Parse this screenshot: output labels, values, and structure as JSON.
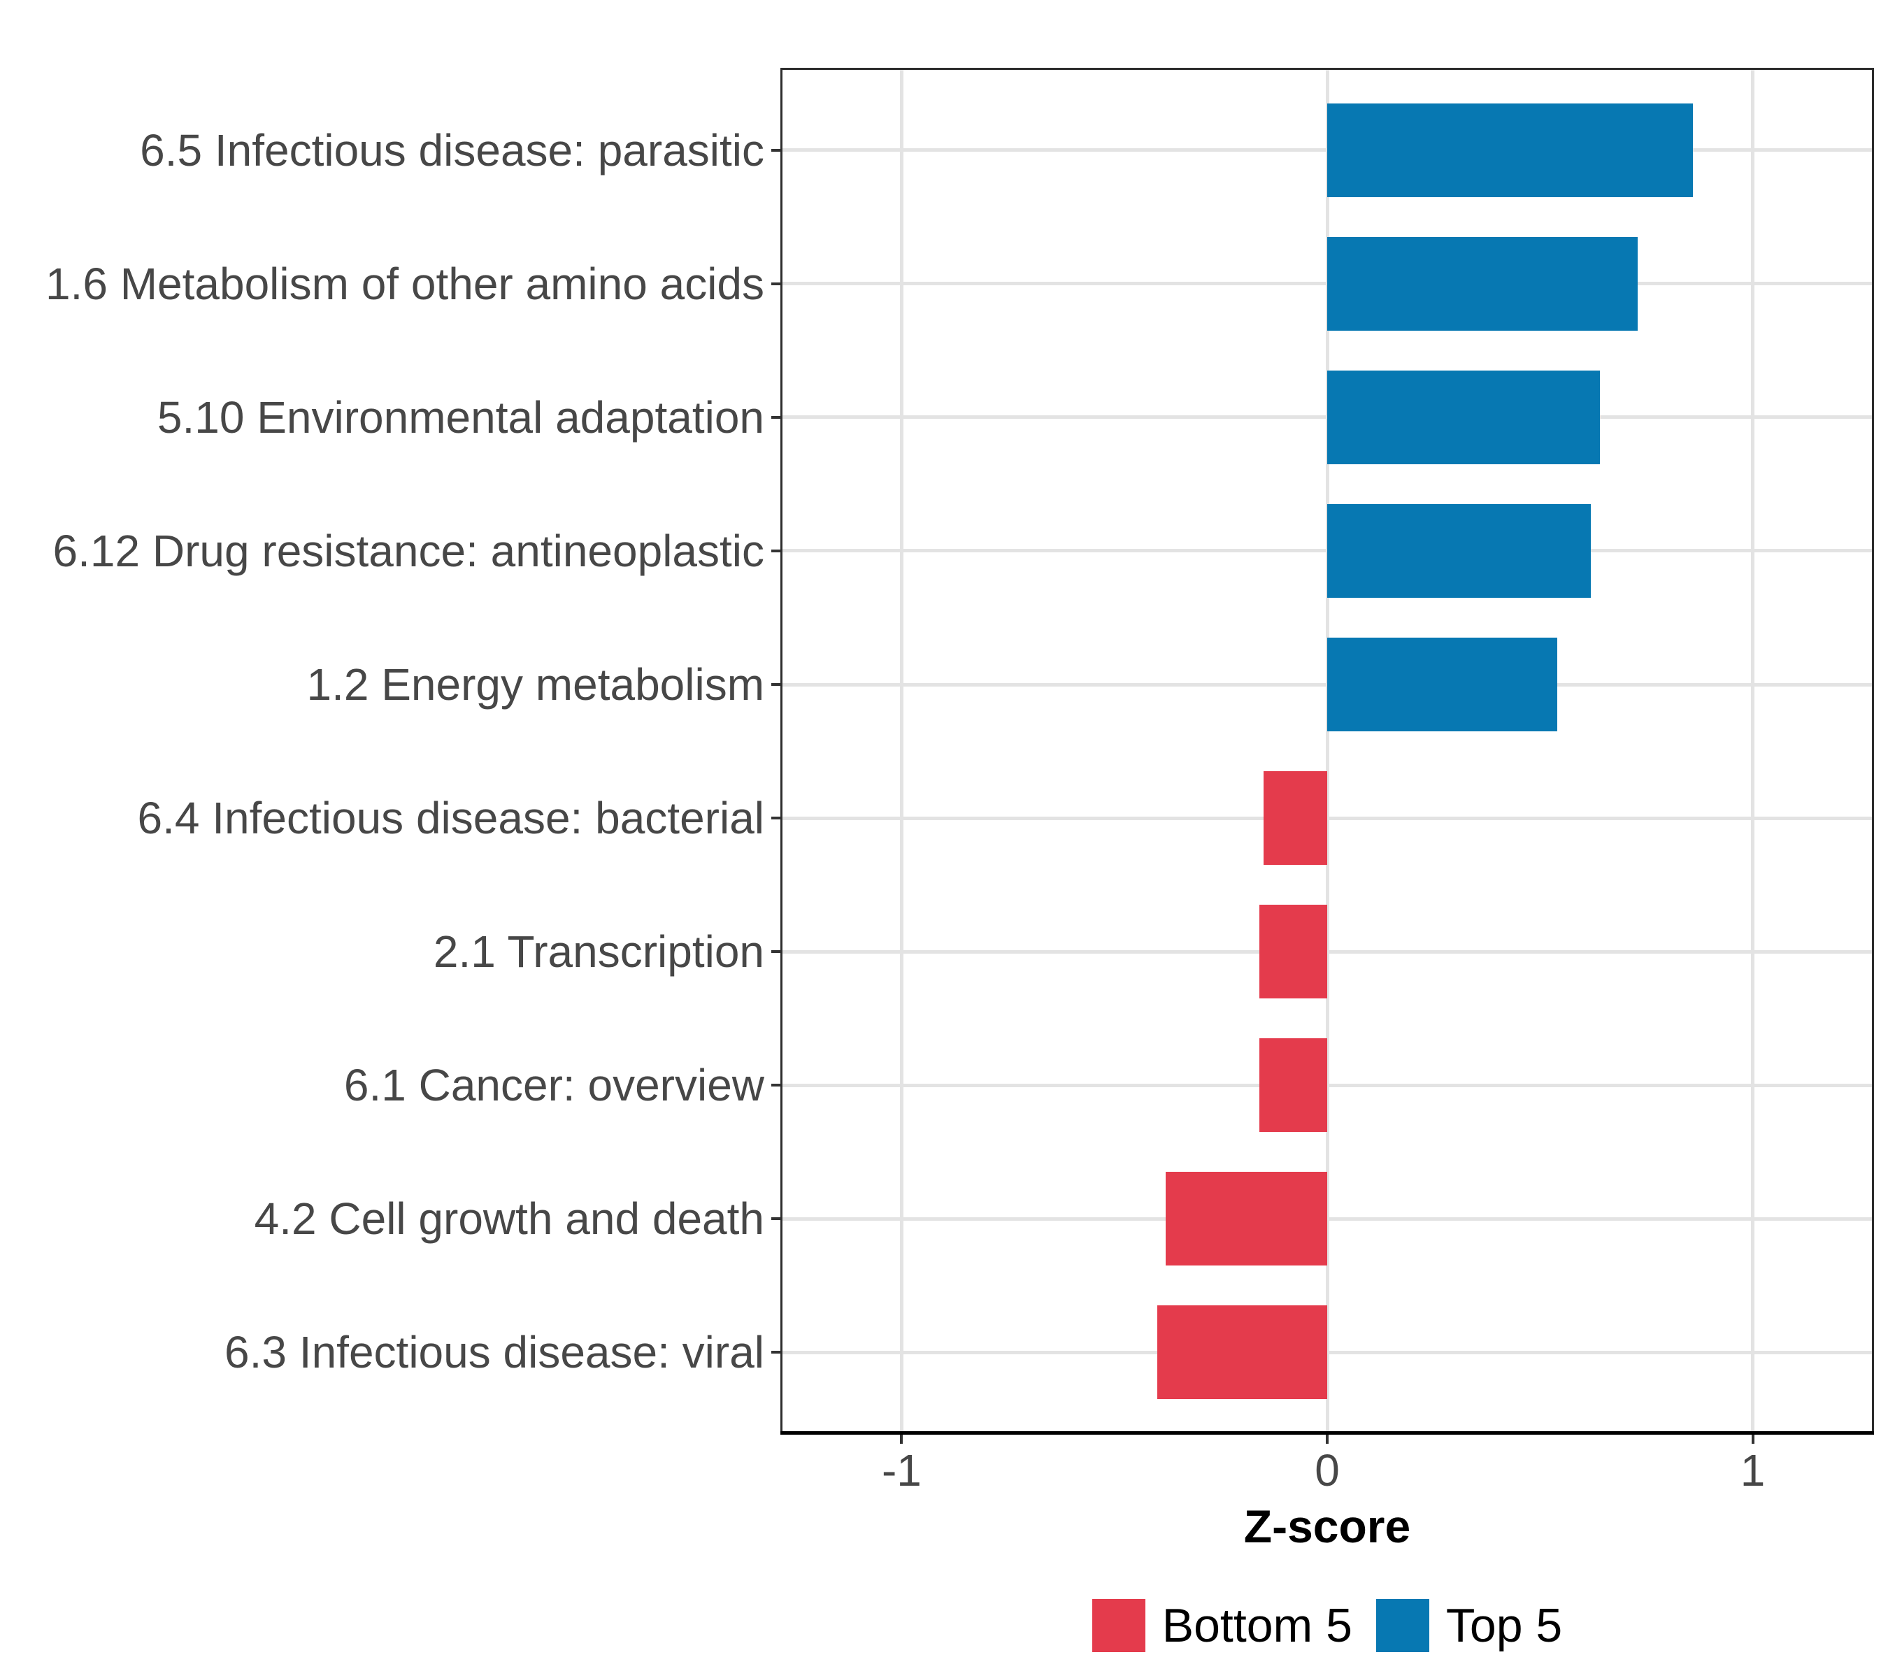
{
  "chart_data": {
    "type": "bar",
    "orientation": "horizontal",
    "title": "",
    "xlabel": "Z-score",
    "ylabel": "",
    "xlim": [
      -1.28,
      1.28
    ],
    "x_ticks": [
      {
        "value": -1,
        "label": "-1"
      },
      {
        "value": 0,
        "label": "0"
      },
      {
        "value": 1,
        "label": "1"
      }
    ],
    "grid": "major-only",
    "legend_position": "bottom",
    "groups": [
      {
        "name": "Bottom 5",
        "color": "#e43b4c"
      },
      {
        "name": "Top 5",
        "color": "#0778b2"
      }
    ],
    "bars": [
      {
        "category": "6.5 Infectious disease: parasitic",
        "value": 0.86,
        "group": "Top 5"
      },
      {
        "category": "1.6 Metabolism of other amino acids",
        "value": 0.73,
        "group": "Top 5"
      },
      {
        "category": "5.10 Environmental adaptation",
        "value": 0.64,
        "group": "Top 5"
      },
      {
        "category": "6.12 Drug resistance: antineoplastic",
        "value": 0.62,
        "group": "Top 5"
      },
      {
        "category": "1.2 Energy metabolism",
        "value": 0.54,
        "group": "Top 5"
      },
      {
        "category": "6.4 Infectious disease: bacterial",
        "value": -0.15,
        "group": "Bottom 5"
      },
      {
        "category": "2.1 Transcription",
        "value": -0.16,
        "group": "Bottom 5"
      },
      {
        "category": "6.1 Cancer: overview",
        "value": -0.16,
        "group": "Bottom 5"
      },
      {
        "category": "4.2 Cell growth and death",
        "value": -0.38,
        "group": "Bottom 5"
      },
      {
        "category": "6.3 Infectious disease: viral",
        "value": -0.4,
        "group": "Bottom 5"
      }
    ]
  },
  "style_colors": {
    "grid": "#e3e3e3",
    "panel_border": "#2d2d2d",
    "axis_line": "#000000",
    "tick_mark": "#333333",
    "axis_text": "#474747"
  }
}
